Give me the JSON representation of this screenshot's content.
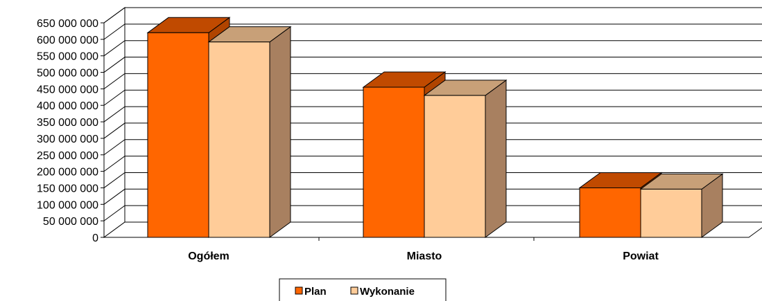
{
  "chart_data": {
    "type": "bar",
    "categories": [
      "Ogółem",
      "Miasto",
      "Powiat"
    ],
    "series": [
      {
        "name": "Plan",
        "values": [
          620000000,
          455000000,
          150000000
        ]
      },
      {
        "name": "Wykonanie",
        "values": [
          592000000,
          430000000,
          146000000
        ]
      }
    ],
    "ylim": [
      0,
      650000000
    ],
    "ytick_step": 50000000,
    "y_ticks": [
      "0",
      "50 000 000",
      "100 000 000",
      "150 000 000",
      "200 000 000",
      "250 000 000",
      "300 000 000",
      "350 000 000",
      "400 000 000",
      "450 000 000",
      "500 000 000",
      "550 000 000",
      "600 000 000",
      "650 000 000"
    ],
    "grid": true,
    "three_d": true,
    "legend_position": "bottom-center",
    "colors": {
      "Plan": {
        "front": "#ff6600",
        "top": "#c04a00",
        "side": "#b04400"
      },
      "Wykonanie": {
        "front": "#ffcc99",
        "top": "#c8a078",
        "side": "#a88060"
      }
    }
  }
}
